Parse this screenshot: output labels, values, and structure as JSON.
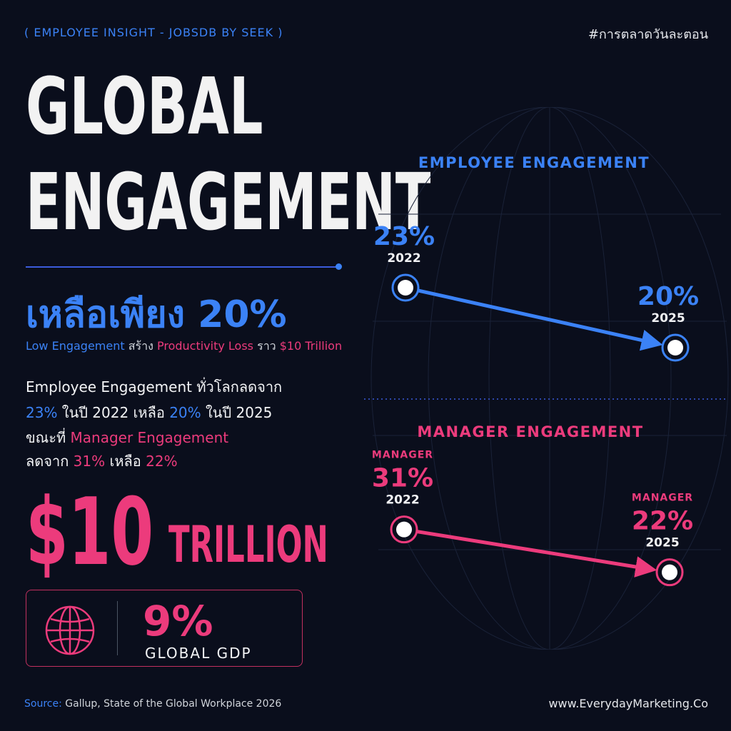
{
  "header": {
    "tag": "( EMPLOYEE INSIGHT - JOBSDB BY SEEK )",
    "hashtag": "#การตลาดวันละตอน"
  },
  "title": {
    "line1": "GLOBAL",
    "line2": "ENGAGEMENT"
  },
  "highlight": "เหลือเพียง 20%",
  "subline": {
    "part1": "Low Engagement",
    "part2": " สร้าง ",
    "part3": "Productivity Loss",
    "part4": " ราว ",
    "part5": "$10 Trillion"
  },
  "description": {
    "l1": "Employee Engagement ทั่วโลกลดจาก",
    "l2_a": "23%",
    "l2_b": " ในปี 2022 เหลือ ",
    "l2_c": "20%",
    "l2_d": " ในปี 2025",
    "l3_a": "ขณะที่ ",
    "l3_b": "Manager Engagement",
    "l4_a": "ลดจาก ",
    "l4_b": "31%",
    "l4_c": " เหลือ ",
    "l4_d": "22%"
  },
  "big_number": {
    "amount": "$10",
    "unit": "TRILLION"
  },
  "gdp": {
    "pct": "9%",
    "label": "GLOBAL GDP"
  },
  "footer": {
    "source_label": "Source:",
    "source_text": " Gallup, State of the Global Workplace 2026",
    "website": "www.EverydayMarketing.Co"
  },
  "icons": {
    "globe": "globe-icon"
  },
  "colors": {
    "background": "#0a0e1c",
    "blue": "#3b82f6",
    "pink": "#ec3b7c"
  },
  "chart_data": {
    "type": "line",
    "series": [
      {
        "name": "EMPLOYEE ENGAGEMENT",
        "color": "#3b82f6",
        "x": [
          2022,
          2025
        ],
        "values": [
          23,
          20
        ],
        "labels": [
          "23%",
          "20%"
        ],
        "year_labels": [
          "2022",
          "2025"
        ],
        "point_prefix": [
          "",
          ""
        ]
      },
      {
        "name": "MANAGER ENGAGEMENT",
        "color": "#ec3b7c",
        "x": [
          2022,
          2025
        ],
        "values": [
          31,
          22
        ],
        "labels": [
          "31%",
          "22%"
        ],
        "year_labels": [
          "2022",
          "2025"
        ],
        "point_prefix": [
          "MANAGER",
          "MANAGER"
        ]
      }
    ]
  }
}
